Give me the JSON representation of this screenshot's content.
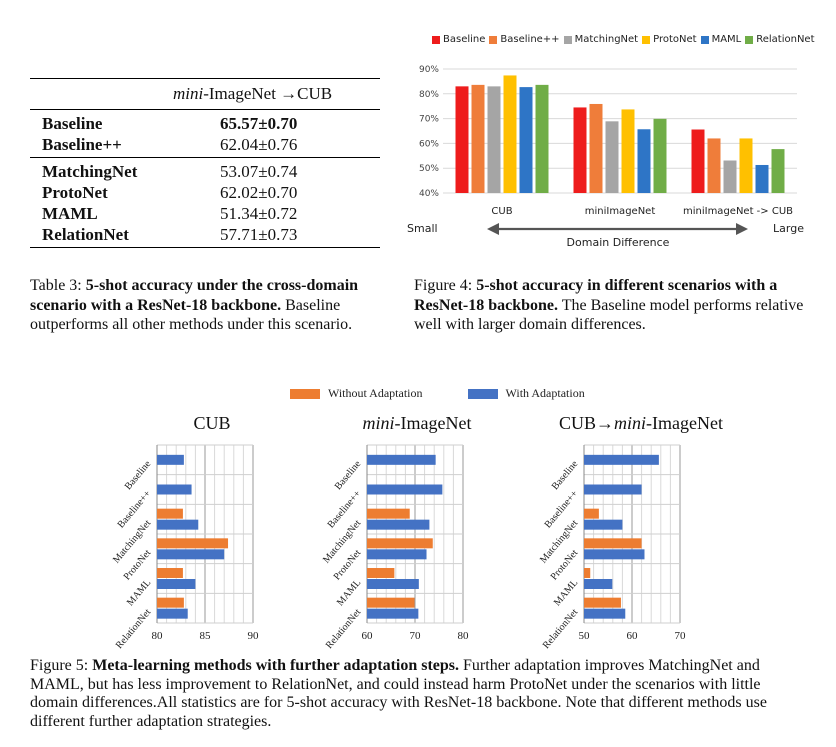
{
  "table3": {
    "col_label_italic": "mini",
    "col_label_rest": "-ImageNet →CUB",
    "rows_group1": [
      {
        "method": "Baseline",
        "value": "65.57±0.70",
        "bold": true
      },
      {
        "method": "Baseline++",
        "value": "62.04±0.76",
        "bold": false
      }
    ],
    "rows_group2": [
      {
        "method": "MatchingNet",
        "value": "53.07±0.74"
      },
      {
        "method": "ProtoNet",
        "value": "62.02±0.70"
      },
      {
        "method": "MAML",
        "value": "51.34±0.72"
      },
      {
        "method": "RelationNet",
        "value": "57.71±0.73"
      }
    ],
    "caption_prefix": "Table 3: ",
    "caption_bold": "5-shot accuracy under the cross-domain scenario with a ResNet-18 backbone.",
    "caption_rest": " Baseline outperforms all other methods under this scenario."
  },
  "figure4": {
    "caption_prefix": "Figure 4: ",
    "caption_bold": "5-shot accuracy in different scenarios with a ResNet-18 backbone.",
    "caption_rest": " The Baseline model performs relative well with larger domain differences.",
    "arrow_left": "Small",
    "arrow_right": "Large",
    "arrow_label": "Domain Difference"
  },
  "figure5": {
    "legend_without": "Without Adaptation",
    "legend_with": "With Adaptation",
    "caption_prefix": "Figure 5: ",
    "caption_bold": "Meta-learning methods with further adaptation steps.",
    "caption_rest": " Further adaptation improves MatchingNet and MAML, but has less improvement to RelationNet, and could instead harm ProtoNet under the scenarios with little domain differences.All statistics are for 5-shot accuracy with ResNet-18 backbone. Note that different methods use different further adaptation strategies.",
    "panel_titles": {
      "p1": "CUB",
      "p2_italic": "mini",
      "p2_rest": "-ImageNet",
      "p3_prefix": "CUB→",
      "p3_italic": "mini",
      "p3_rest": "-ImageNet"
    }
  },
  "colors": {
    "Baseline": "#ee1c1c",
    "Baseline++": "#ef7d3a",
    "MatchingNet": "#a5a5a5",
    "ProtoNet": "#ffc000",
    "MAML": "#2e75c6",
    "RelationNet": "#70ad47",
    "without": "#ed7d31",
    "with": "#4472c4"
  },
  "chart_data": [
    {
      "type": "bar",
      "categories": [
        "CUB",
        "miniImageNet",
        "miniImageNet -> CUB"
      ],
      "series": [
        {
          "name": "Baseline",
          "values": [
            83.0,
            74.5,
            65.6
          ]
        },
        {
          "name": "Baseline++",
          "values": [
            83.6,
            75.9,
            62.0
          ]
        },
        {
          "name": "MatchingNet",
          "values": [
            83.0,
            68.9,
            53.1
          ]
        },
        {
          "name": "ProtoNet",
          "values": [
            87.4,
            73.7,
            62.0
          ]
        },
        {
          "name": "MAML",
          "values": [
            82.7,
            65.7,
            51.3
          ]
        },
        {
          "name": "RelationNet",
          "values": [
            83.6,
            69.9,
            57.7
          ]
        }
      ],
      "ylim": [
        40,
        90
      ],
      "yticks": [
        "40%",
        "50%",
        "60%",
        "70%",
        "80%",
        "90%"
      ],
      "legend": "top"
    },
    {
      "type": "bar",
      "title": "CUB",
      "orientation": "horizontal",
      "categories": [
        "Baseline",
        "Baseline++",
        "MatchingNet",
        "ProtoNet",
        "MAML",
        "RelationNet"
      ],
      "series": [
        {
          "name": "Without Adaptation",
          "values": [
            null,
            null,
            82.7,
            87.4,
            82.7,
            82.8
          ]
        },
        {
          "name": "With Adaptation",
          "values": [
            82.8,
            83.6,
            84.3,
            87.0,
            84.0,
            83.2
          ]
        }
      ],
      "xlim": [
        80,
        90
      ],
      "xticks": [
        "80",
        "85",
        "90"
      ]
    },
    {
      "type": "bar",
      "title": "mini-ImageNet",
      "orientation": "horizontal",
      "categories": [
        "Baseline",
        "Baseline++",
        "MatchingNet",
        "ProtoNet",
        "MAML",
        "RelationNet"
      ],
      "series": [
        {
          "name": "Without Adaptation",
          "values": [
            null,
            null,
            68.9,
            73.7,
            65.7,
            69.9
          ]
        },
        {
          "name": "With Adaptation",
          "values": [
            74.3,
            75.7,
            73.0,
            72.4,
            70.8,
            70.7
          ]
        }
      ],
      "xlim": [
        60,
        80
      ],
      "xticks": [
        "60",
        "70",
        "80"
      ]
    },
    {
      "type": "bar",
      "title": "CUB→mini-ImageNet",
      "orientation": "horizontal",
      "categories": [
        "Baseline",
        "Baseline++",
        "MatchingNet",
        "ProtoNet",
        "MAML",
        "RelationNet"
      ],
      "series": [
        {
          "name": "Without Adaptation",
          "values": [
            null,
            null,
            53.1,
            62.0,
            51.3,
            57.7
          ]
        },
        {
          "name": "With Adaptation",
          "values": [
            65.6,
            62.0,
            58.0,
            62.6,
            55.9,
            58.6
          ]
        }
      ],
      "xlim": [
        50,
        70
      ],
      "xticks": [
        "50",
        "60",
        "70"
      ]
    }
  ]
}
